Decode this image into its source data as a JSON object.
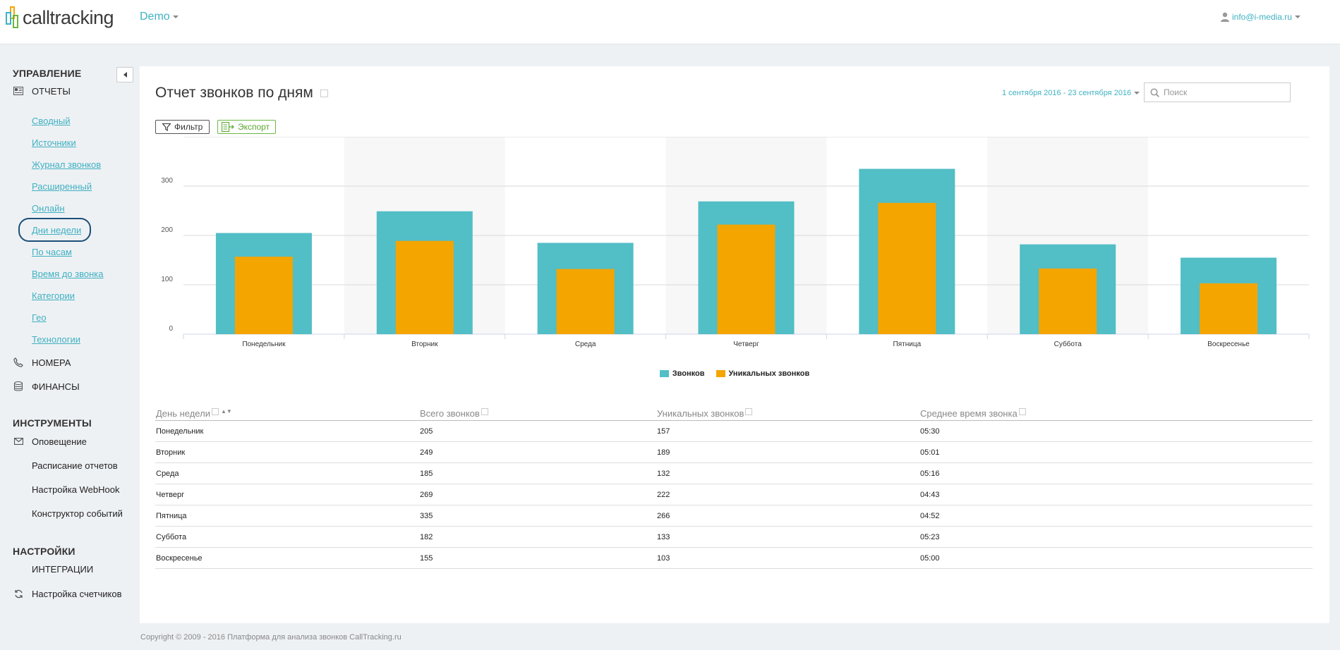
{
  "header": {
    "logo_text": "calltracking",
    "project": "Demo",
    "user_email": "info@i-media.ru"
  },
  "sidebar": {
    "management_title": "УПРАВЛЕНИЕ",
    "reports_label": "ОТЧЕТЫ",
    "report_links": [
      "Сводный",
      "Источники",
      "Журнал звонков",
      "Расширенный",
      "Онлайн",
      "Дни недели",
      "По часам",
      "Время до звонка",
      "Категории",
      "Гео",
      "Технологии"
    ],
    "numbers_label": "НОМЕРА",
    "finance_label": "ФИНАНСЫ",
    "tools_title": "ИНСТРУМЕНТЫ",
    "notification_label": "Оповещение",
    "tools_links": [
      "Расписание отчетов",
      "Настройка WebHook",
      "Конструктор событий"
    ],
    "settings_title": "НАСТРОЙКИ",
    "integrations_label": "ИНТЕГРАЦИИ",
    "counters_label": "Настройка счетчиков"
  },
  "main": {
    "title": "Отчет звонков по дням",
    "date_range": "1 сентября 2016 - 23 сентября 2016",
    "search_placeholder": "Поиск",
    "filter_label": "Фильтр",
    "export_label": "Экспорт"
  },
  "chart_data": {
    "type": "bar",
    "categories": [
      "Понедельник",
      "Вторник",
      "Среда",
      "Четверг",
      "Пятница",
      "Суббота",
      "Воскресенье"
    ],
    "series": [
      {
        "name": "Звонков",
        "color": "#52bec6",
        "values": [
          205,
          249,
          185,
          269,
          335,
          182,
          155
        ]
      },
      {
        "name": "Уникальных звонков",
        "color": "#f4a500",
        "values": [
          157,
          189,
          132,
          222,
          266,
          133,
          103
        ]
      }
    ],
    "y_ticks": [
      0,
      100,
      200,
      300
    ],
    "ylim": [
      0,
      400
    ],
    "grid": true,
    "legend": "bottom-center"
  },
  "table": {
    "headers": [
      "День недели",
      "Всего звонков",
      "Уникальных звонков",
      "Среднее время звонка"
    ],
    "rows": [
      [
        "Понедельник",
        "205",
        "157",
        "05:30"
      ],
      [
        "Вторник",
        "249",
        "189",
        "05:01"
      ],
      [
        "Среда",
        "185",
        "132",
        "05:16"
      ],
      [
        "Четверг",
        "269",
        "222",
        "04:43"
      ],
      [
        "Пятница",
        "335",
        "266",
        "04:52"
      ],
      [
        "Суббота",
        "182",
        "133",
        "05:23"
      ],
      [
        "Воскресенье",
        "155",
        "103",
        "05:00"
      ]
    ]
  },
  "footer": {
    "copyright": "Copyright © 2009 - 2016 Платформа для анализа звонков CallTracking.ru"
  }
}
